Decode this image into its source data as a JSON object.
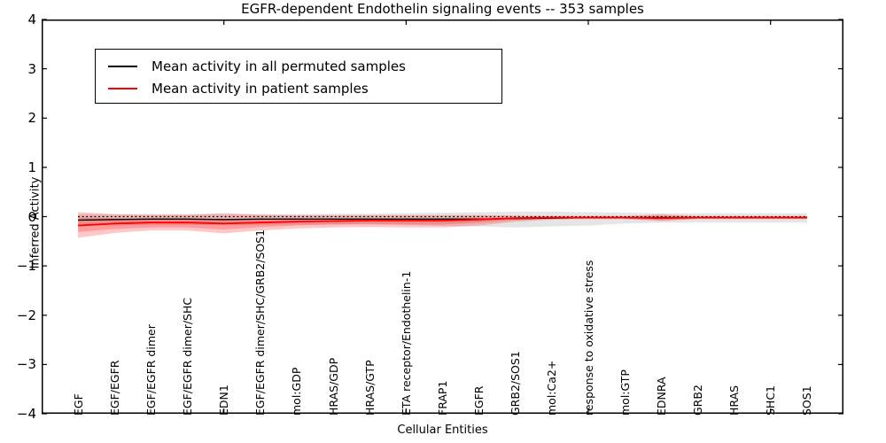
{
  "figure": {
    "title": "EGFR-dependent Endothelin signaling events -- 353 samples",
    "xlabel": "Cellular Entities",
    "ylabel": "Inferred Activity"
  },
  "chart_data": {
    "type": "line",
    "title": "EGFR-dependent Endothelin signaling events -- 353 samples",
    "xlabel": "Cellular Entities",
    "ylabel": "Inferred Activity",
    "ylim": [
      -4,
      4
    ],
    "xlim": [
      0,
      22
    ],
    "grid": false,
    "legend_position": "upper left",
    "background": "#ffffff",
    "axis_color": "#000000",
    "y_ticks": [
      {
        "value": 4,
        "label": "4"
      },
      {
        "value": 3,
        "label": "3"
      },
      {
        "value": 2,
        "label": "2"
      },
      {
        "value": 1,
        "label": "1"
      },
      {
        "value": 0,
        "label": "0"
      },
      {
        "value": -1,
        "label": "−1"
      },
      {
        "value": -2,
        "label": "−2"
      },
      {
        "value": -3,
        "label": "−3"
      },
      {
        "value": -4,
        "label": "−4"
      }
    ],
    "x_major_ticks": [
      5,
      10,
      15,
      20
    ],
    "categories": [
      "EGF",
      "EGF/EGFR",
      "EGF/EGFR dimer",
      "EGF/EGFR dimer/SHC",
      "EDN1",
      "EGF/EGFR dimer/SHC/GRB2/SOS1",
      "mol:GDP",
      "HRAS/GDP",
      "HRAS/GTP",
      "ETA receptor/Endothelin-1",
      "FRAP1",
      "EGFR",
      "GRB2/SOS1",
      "mol:Ca2+",
      "response to oxidative stress",
      "mol:GTP",
      "EDNRA",
      "GRB2",
      "HRAS",
      "SHC1",
      "SOS1"
    ],
    "legend": [
      {
        "label": "Mean activity in all permuted samples",
        "color": "#000000"
      },
      {
        "label": "Mean activity in patient samples",
        "color": "#ff0000"
      }
    ],
    "series": [
      {
        "name": "Permuted samples spread",
        "type": "band",
        "color": "#000000",
        "opacity": 0.1,
        "upper": [
          0.05,
          0.05,
          0.05,
          0.05,
          0.05,
          0.05,
          0.05,
          0.06,
          0.06,
          0.07,
          0.08,
          0.09,
          0.1,
          0.1,
          0.09,
          0.08,
          0.07,
          0.07,
          0.07,
          0.07,
          0.07
        ],
        "lower": [
          -0.2,
          -0.18,
          -0.17,
          -0.17,
          -0.17,
          -0.17,
          -0.16,
          -0.16,
          -0.16,
          -0.17,
          -0.19,
          -0.2,
          -0.22,
          -0.2,
          -0.18,
          -0.14,
          -0.12,
          -0.12,
          -0.12,
          -0.12,
          -0.12
        ]
      },
      {
        "name": "Patient samples spread (outer)",
        "type": "band",
        "color": "#ff0000",
        "opacity": 0.22,
        "upper": [
          0.09,
          0.05,
          0.04,
          0.04,
          0.07,
          0.04,
          0.03,
          0.03,
          0.03,
          0.03,
          0.03,
          0.03,
          0.02,
          0.01,
          0.01,
          0.01,
          0.05,
          0.01,
          0.01,
          0.01,
          0.01
        ],
        "lower": [
          -0.43,
          -0.33,
          -0.28,
          -0.28,
          -0.34,
          -0.28,
          -0.24,
          -0.22,
          -0.21,
          -0.22,
          -0.22,
          -0.18,
          -0.1,
          -0.06,
          -0.05,
          -0.05,
          -0.09,
          -0.05,
          -0.05,
          -0.05,
          -0.05
        ]
      },
      {
        "name": "Patient samples spread (inner)",
        "type": "band",
        "color": "#ff0000",
        "opacity": 0.22,
        "upper": [
          -0.02,
          -0.03,
          -0.03,
          -0.03,
          -0.04,
          -0.04,
          -0.03,
          -0.03,
          -0.03,
          -0.03,
          -0.03,
          -0.02,
          -0.01,
          0.0,
          0.0,
          0.0,
          0.01,
          0.0,
          0.0,
          0.0,
          0.0
        ],
        "lower": [
          -0.31,
          -0.25,
          -0.22,
          -0.22,
          -0.26,
          -0.21,
          -0.18,
          -0.16,
          -0.15,
          -0.16,
          -0.16,
          -0.12,
          -0.07,
          -0.05,
          -0.04,
          -0.04,
          -0.07,
          -0.04,
          -0.04,
          -0.04,
          -0.04
        ]
      },
      {
        "name": "Zero reference",
        "type": "line",
        "style": "dotted",
        "color": "#000000",
        "width": 1.3,
        "values": [
          0,
          0,
          0,
          0,
          0,
          0,
          0,
          0,
          0,
          0,
          0,
          0,
          0,
          0,
          0,
          0,
          0,
          0,
          0,
          0,
          0
        ]
      },
      {
        "name": "Mean activity in all permuted samples",
        "type": "line",
        "style": "solid",
        "color": "#000000",
        "width": 1.4,
        "values": [
          -0.07,
          -0.06,
          -0.05,
          -0.05,
          -0.06,
          -0.05,
          -0.05,
          -0.05,
          -0.05,
          -0.05,
          -0.05,
          -0.05,
          -0.04,
          -0.03,
          -0.02,
          -0.02,
          -0.02,
          -0.02,
          -0.02,
          -0.02,
          -0.02
        ]
      },
      {
        "name": "Mean activity in patient samples",
        "type": "line",
        "style": "solid",
        "color": "#ff0000",
        "width": 1.8,
        "values": [
          -0.18,
          -0.14,
          -0.12,
          -0.12,
          -0.14,
          -0.12,
          -0.1,
          -0.09,
          -0.08,
          -0.08,
          -0.08,
          -0.06,
          -0.03,
          -0.02,
          -0.02,
          -0.02,
          -0.03,
          -0.02,
          -0.02,
          -0.02,
          -0.02
        ]
      }
    ]
  }
}
